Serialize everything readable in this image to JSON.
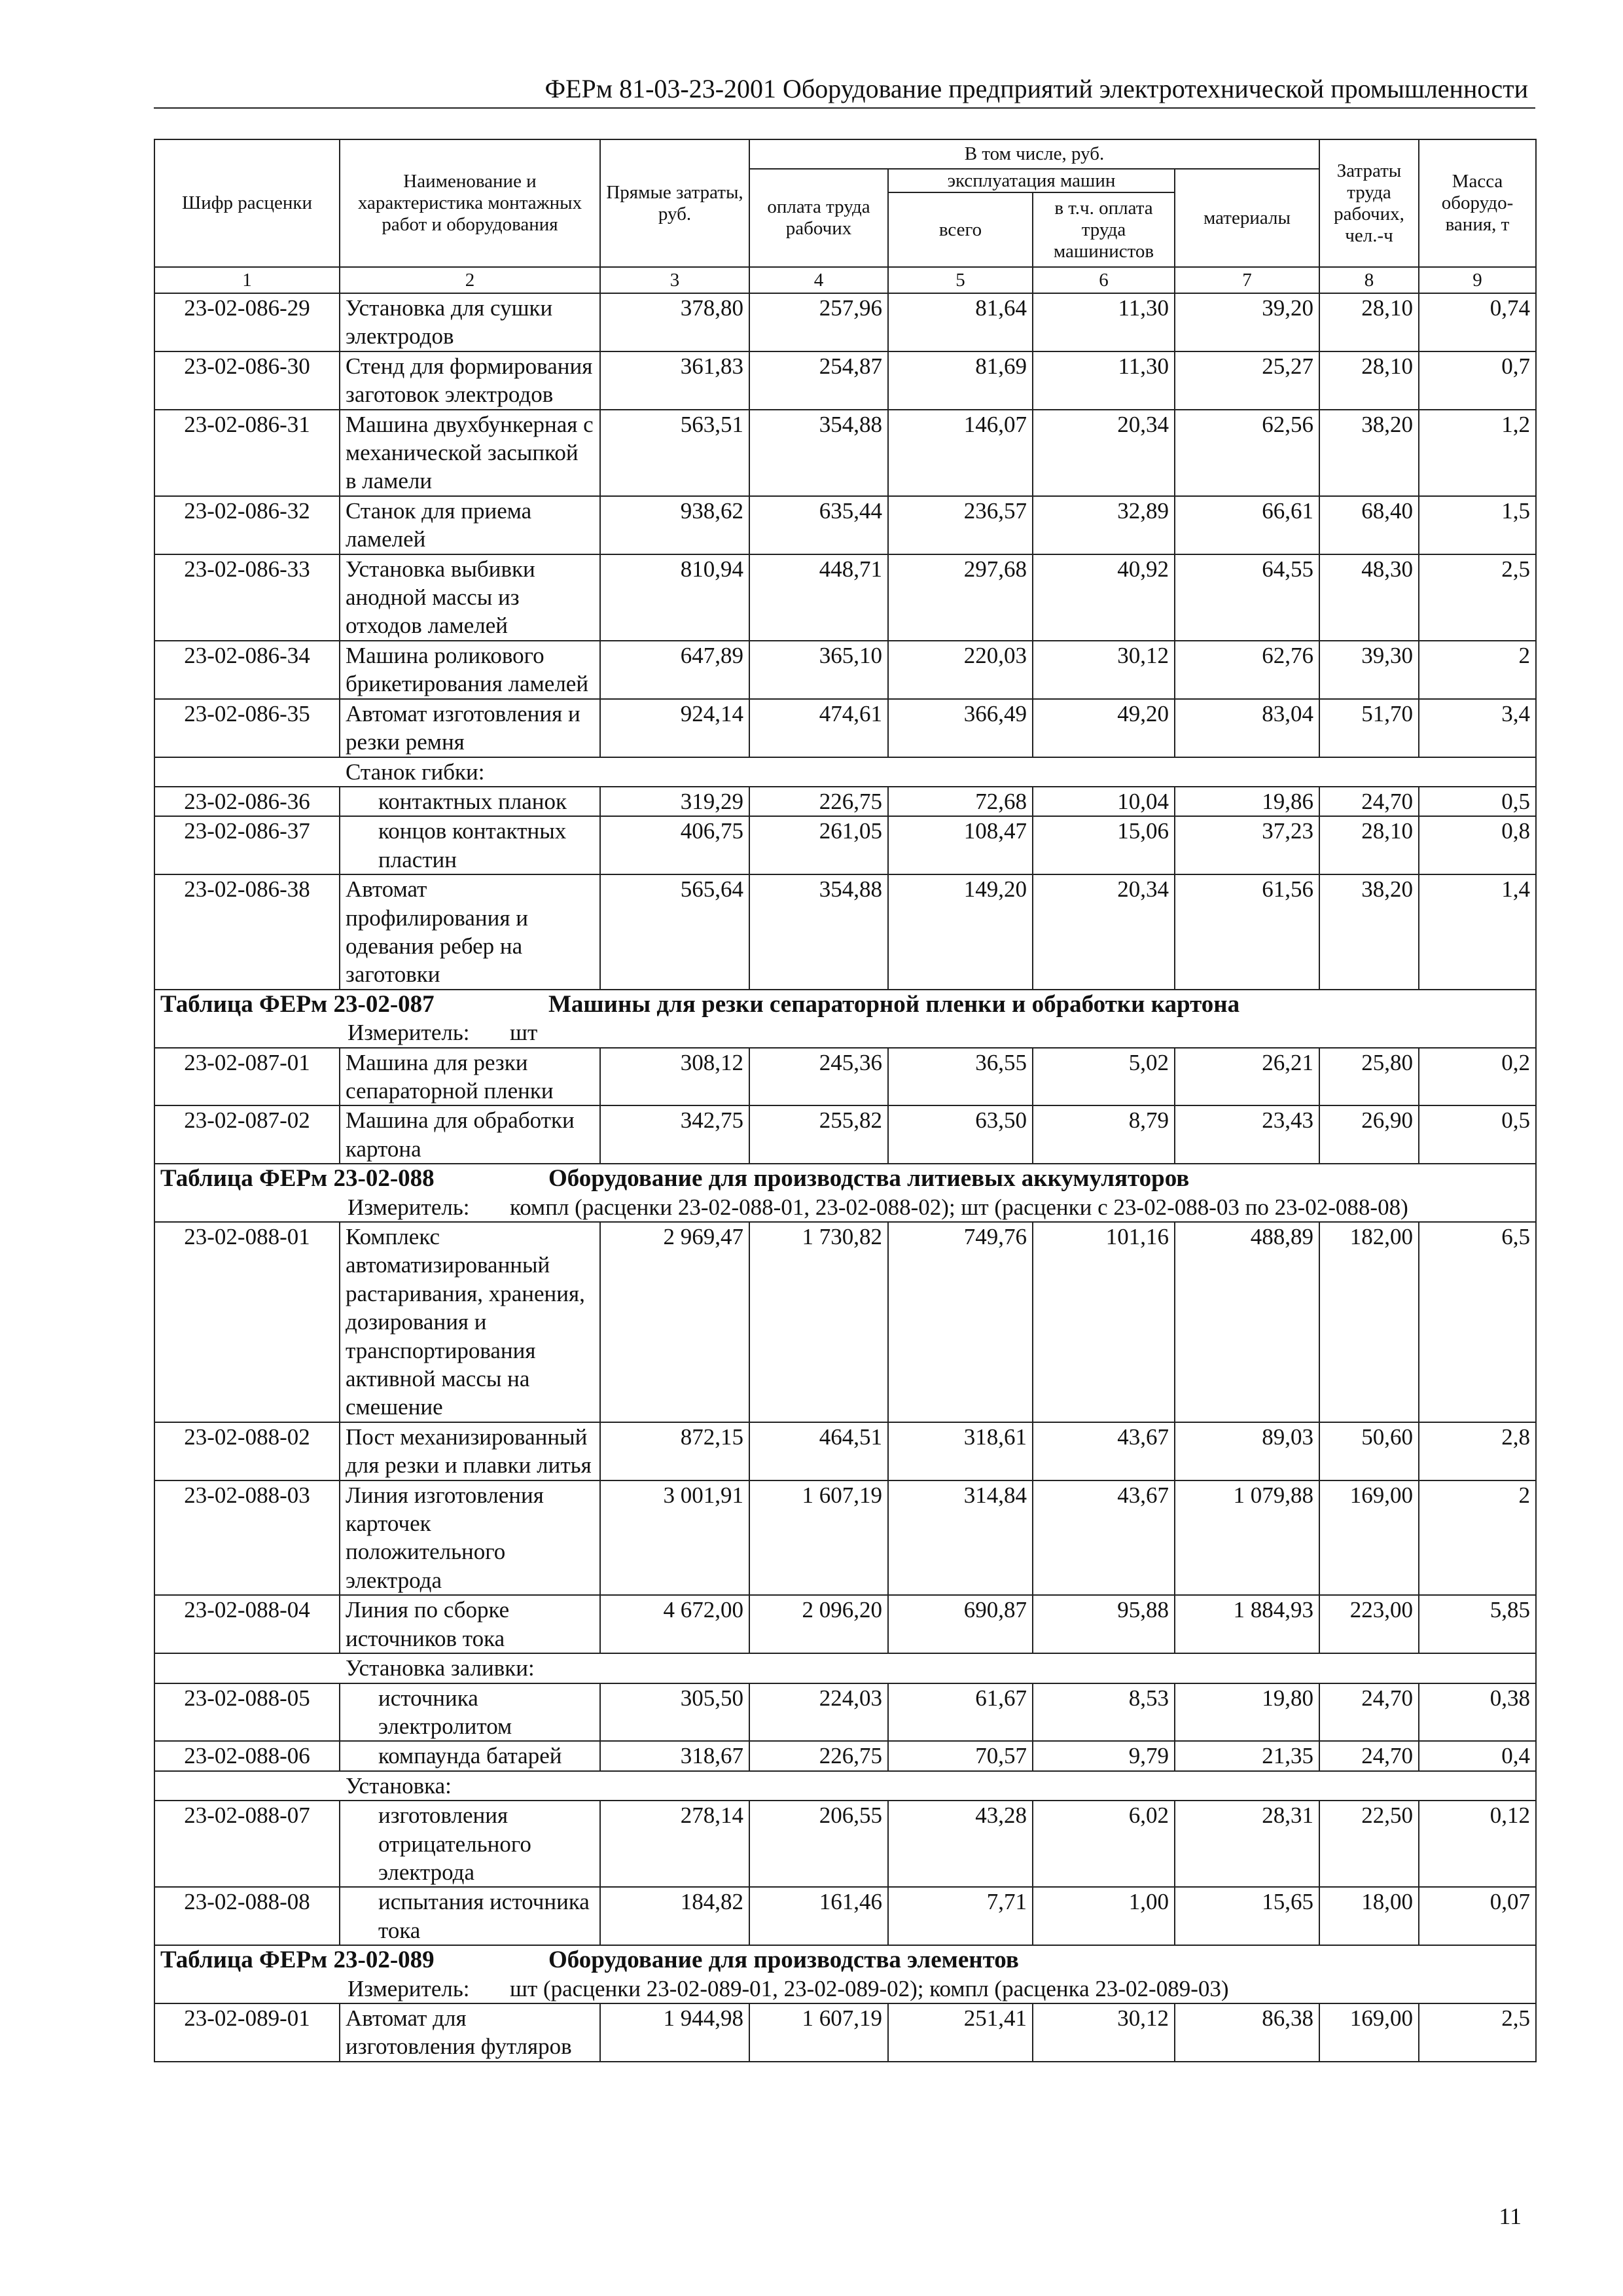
{
  "header": {
    "title": "ФЕРм 81-03-23-2001 Оборудование предприятий электротехнической промышленности"
  },
  "table": {
    "headers": {
      "code": "Шифр расценки",
      "name": "Наименование и характеристика монтажных работ и оборудования",
      "direct": "Прямые затраты, руб.",
      "including": "В том числе, руб.",
      "wages": "оплата труда рабочих",
      "machines": "эксплуатация машин",
      "machines_total": "всего",
      "machines_wages": "в т.ч. оплата труда машинистов",
      "materials": "материалы",
      "labor": "Затраты труда рабочих, чел.-ч",
      "mass": "Масса оборудо-вания, т"
    },
    "column_numbers": [
      "1",
      "2",
      "3",
      "4",
      "5",
      "6",
      "7",
      "8",
      "9"
    ],
    "rows": [
      {
        "cells": [
          "23-02-086-29",
          "Установка для сушки электродов",
          "378,80",
          "257,96",
          "81,64",
          "11,30",
          "39,20",
          "28,10",
          "0,74"
        ]
      },
      {
        "cells": [
          "23-02-086-30",
          "Стенд для формирования заготовок электродов",
          "361,83",
          "254,87",
          "81,69",
          "11,30",
          "25,27",
          "28,10",
          "0,7"
        ]
      },
      {
        "cells": [
          "23-02-086-31",
          "Машина двухбункерная с механической засыпкой в ламели",
          "563,51",
          "354,88",
          "146,07",
          "20,34",
          "62,56",
          "38,20",
          "1,2"
        ]
      },
      {
        "cells": [
          "23-02-086-32",
          "Станок для приема ламелей",
          "938,62",
          "635,44",
          "236,57",
          "32,89",
          "66,61",
          "68,40",
          "1,5"
        ]
      },
      {
        "cells": [
          "23-02-086-33",
          "Установка выбивки анодной массы из отходов ламелей",
          "810,94",
          "448,71",
          "297,68",
          "40,92",
          "64,55",
          "48,30",
          "2,5"
        ]
      },
      {
        "cells": [
          "23-02-086-34",
          "Машина роликового брикетирования ламелей",
          "647,89",
          "365,10",
          "220,03",
          "30,12",
          "62,76",
          "39,30",
          "2"
        ]
      },
      {
        "cells": [
          "23-02-086-35",
          "Автомат изготовления и резки ремня",
          "924,14",
          "474,61",
          "366,49",
          "49,20",
          "83,04",
          "51,70",
          "3,4"
        ]
      },
      {
        "group": "Станок гибки:",
        "rows": [
          {
            "cells": [
              "23-02-086-36",
              "контактных планок",
              "319,29",
              "226,75",
              "72,68",
              "10,04",
              "19,86",
              "24,70",
              "0,5"
            ]
          },
          {
            "cells": [
              "23-02-086-37",
              "концов контактных пластин",
              "406,75",
              "261,05",
              "108,47",
              "15,06",
              "37,23",
              "28,10",
              "0,8"
            ]
          }
        ]
      },
      {
        "cells": [
          "23-02-086-38",
          "Автомат профилирования и одевания ребер на заготовки",
          "565,64",
          "354,88",
          "149,20",
          "20,34",
          "61,56",
          "38,20",
          "1,4"
        ]
      },
      {
        "table_code": "Таблица ФЕРм 23-02-087",
        "table_name": "Машины для резки сепараторной пленки и обработки картона"
      },
      {
        "measure_label": "Измеритель:",
        "measure": "шт"
      },
      {
        "cells": [
          "23-02-087-01",
          "Машина для резки сепараторной пленки",
          "308,12",
          "245,36",
          "36,55",
          "5,02",
          "26,21",
          "25,80",
          "0,2"
        ]
      },
      {
        "cells": [
          "23-02-087-02",
          "Машина для обработки картона",
          "342,75",
          "255,82",
          "63,50",
          "8,79",
          "23,43",
          "26,90",
          "0,5"
        ]
      },
      {
        "table_code": "Таблица ФЕРм 23-02-088",
        "table_name": "Оборудование для производства литиевых аккумуляторов"
      },
      {
        "measure_label": "Измеритель:",
        "measure": "компл (расценки 23-02-088-01, 23-02-088-02); шт (расценки с 23-02-088-03 по 23-02-088-08)"
      },
      {
        "cells": [
          "23-02-088-01",
          "Комплекс автоматизированный растаривания, хранения, дозирования и транспортирования активной массы на смешение",
          "2 969,47",
          "1 730,82",
          "749,76",
          "101,16",
          "488,89",
          "182,00",
          "6,5"
        ]
      },
      {
        "cells": [
          "23-02-088-02",
          "Пост механизированный для резки и плавки литья",
          "872,15",
          "464,51",
          "318,61",
          "43,67",
          "89,03",
          "50,60",
          "2,8"
        ]
      },
      {
        "cells": [
          "23-02-088-03",
          "Линия изготовления карточек положительного электрода",
          "3 001,91",
          "1 607,19",
          "314,84",
          "43,67",
          "1 079,88",
          "169,00",
          "2"
        ]
      },
      {
        "cells": [
          "23-02-088-04",
          "Линия по сборке источников тока",
          "4 672,00",
          "2 096,20",
          "690,87",
          "95,88",
          "1 884,93",
          "223,00",
          "5,85"
        ]
      },
      {
        "group": "Установка заливки:",
        "rows": [
          {
            "cells": [
              "23-02-088-05",
              "источника электролитом",
              "305,50",
              "224,03",
              "61,67",
              "8,53",
              "19,80",
              "24,70",
              "0,38"
            ]
          },
          {
            "cells": [
              "23-02-088-06",
              "компаунда батарей",
              "318,67",
              "226,75",
              "70,57",
              "9,79",
              "21,35",
              "24,70",
              "0,4"
            ]
          }
        ]
      },
      {
        "group": "Установка:",
        "rows": [
          {
            "cells": [
              "23-02-088-07",
              "изготовления отрицательного электрода",
              "278,14",
              "206,55",
              "43,28",
              "6,02",
              "28,31",
              "22,50",
              "0,12"
            ]
          },
          {
            "cells": [
              "23-02-088-08",
              "испытания источника тока",
              "184,82",
              "161,46",
              "7,71",
              "1,00",
              "15,65",
              "18,00",
              "0,07"
            ]
          }
        ]
      },
      {
        "table_code": "Таблица ФЕРм 23-02-089",
        "table_name": "Оборудование для производства элементов"
      },
      {
        "measure_label": "Измеритель:",
        "measure": "шт (расценки 23-02-089-01, 23-02-089-02); компл (расценка 23-02-089-03)"
      },
      {
        "cells": [
          "23-02-089-01",
          "Автомат для изготовления футляров",
          "1 944,98",
          "1 607,19",
          "251,41",
          "30,12",
          "86,38",
          "169,00",
          "2,5"
        ]
      }
    ]
  },
  "page_number": "11"
}
